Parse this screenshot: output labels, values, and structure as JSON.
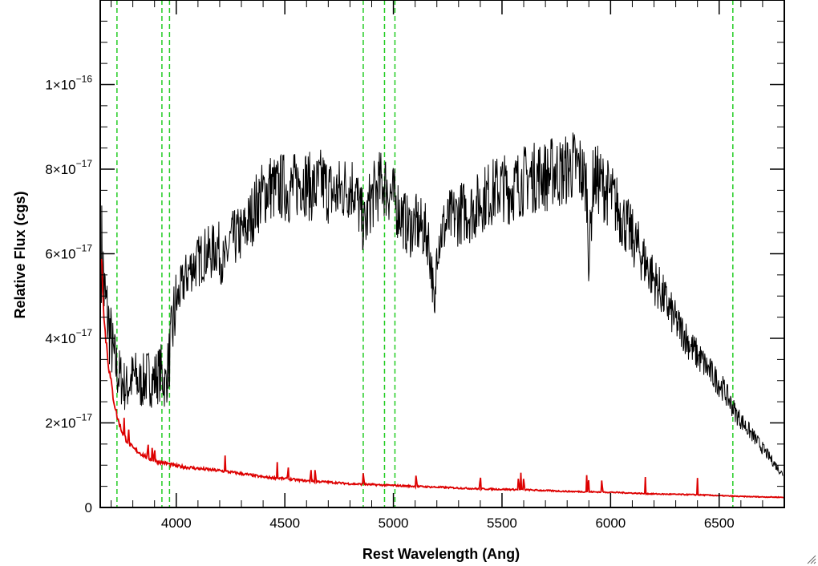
{
  "chart_data": {
    "type": "line",
    "xlabel": "Rest Wavelength (Ang)",
    "ylabel": "Relative Flux (cgs)",
    "xlim": [
      3650,
      6800
    ],
    "ylim": [
      0,
      1.2e-16
    ],
    "x_ticks": [
      {
        "value": 4000,
        "label": "4000"
      },
      {
        "value": 4500,
        "label": "4500"
      },
      {
        "value": 5000,
        "label": "5000"
      },
      {
        "value": 5500,
        "label": "5500"
      },
      {
        "value": 6000,
        "label": "6000"
      },
      {
        "value": 6500,
        "label": "6500"
      }
    ],
    "y_ticks": [
      {
        "value": 0,
        "mantissa": "0",
        "exponent": ""
      },
      {
        "value": 2e-17,
        "mantissa": "2×10",
        "exponent": "−17"
      },
      {
        "value": 4e-17,
        "mantissa": "4×10",
        "exponent": "−17"
      },
      {
        "value": 6e-17,
        "mantissa": "6×10",
        "exponent": "−17"
      },
      {
        "value": 8e-17,
        "mantissa": "8×10",
        "exponent": "−17"
      },
      {
        "value": 1e-16,
        "mantissa": "1×10",
        "exponent": "−16"
      }
    ],
    "vertical_lines": [
      3727,
      3934,
      3969,
      4861,
      4959,
      5007,
      6563
    ],
    "series": [
      {
        "color": "#000000",
        "x": [
          3655,
          3670,
          3690,
          3710,
          3730,
          3750,
          3770,
          3790,
          3810,
          3830,
          3850,
          3870,
          3890,
          3910,
          3930,
          3950,
          3970,
          3990,
          4010,
          4040,
          4070,
          4100,
          4130,
          4160,
          4190,
          4220,
          4250,
          4280,
          4310,
          4340,
          4370,
          4400,
          4430,
          4460,
          4490,
          4520,
          4550,
          4580,
          4610,
          4640,
          4670,
          4700,
          4730,
          4760,
          4790,
          4820,
          4850,
          4870,
          4890,
          4920,
          4950,
          4980,
          5010,
          5040,
          5070,
          5100,
          5130,
          5160,
          5180,
          5190,
          5200,
          5230,
          5260,
          5290,
          5320,
          5350,
          5380,
          5410,
          5440,
          5470,
          5500,
          5530,
          5560,
          5590,
          5620,
          5650,
          5680,
          5710,
          5740,
          5770,
          5800,
          5830,
          5860,
          5890,
          5900,
          5920,
          5950,
          5980,
          6010,
          6040,
          6070,
          6100,
          6130,
          6160,
          6190,
          6220,
          6250,
          6280,
          6310,
          6340,
          6370,
          6400,
          6430,
          6460,
          6490,
          6520,
          6550,
          6580,
          6610,
          6640,
          6670,
          6700,
          6730,
          6760,
          6790
        ],
        "y": [
          6.2e-17,
          5e-17,
          4.3e-17,
          3.6e-17,
          3.2e-17,
          3e-17,
          2.8e-17,
          3e-17,
          3.1e-17,
          2.9e-17,
          3e-17,
          3.1e-17,
          3e-17,
          3.1e-17,
          3.2e-17,
          2.9e-17,
          3.6e-17,
          4.5e-17,
          5e-17,
          5.4e-17,
          5.7e-17,
          5.8e-17,
          6e-17,
          6e-17,
          6.2e-17,
          5.7e-17,
          6.3e-17,
          6.4e-17,
          6.5e-17,
          6.8e-17,
          7.2e-17,
          7.4e-17,
          7.6e-17,
          7.5e-17,
          7.6e-17,
          7.5e-17,
          7.6e-17,
          7.8e-17,
          7.6e-17,
          7.5e-17,
          7.7e-17,
          7.5e-17,
          7.4e-17,
          7.5e-17,
          7.6e-17,
          7.6e-17,
          6.9e-17,
          6.6e-17,
          7.2e-17,
          7.5e-17,
          7.7e-17,
          7.5e-17,
          7.2e-17,
          6.9e-17,
          6.6e-17,
          6.7e-17,
          6.6e-17,
          6.4e-17,
          5.4e-17,
          4.3e-17,
          6.3e-17,
          6.6e-17,
          6.8e-17,
          6.9e-17,
          7e-17,
          7e-17,
          7.1e-17,
          7.3e-17,
          7.4e-17,
          7.5e-17,
          7.6e-17,
          7.5e-17,
          7.6e-17,
          7.7e-17,
          7.8e-17,
          7.8e-17,
          7.9e-17,
          7.8e-17,
          8e-17,
          7.9e-17,
          8e-17,
          8.1e-17,
          8e-17,
          7.6e-17,
          5.8e-17,
          7.8e-17,
          7.7e-17,
          7.5e-17,
          7.3e-17,
          7e-17,
          6.7e-17,
          6.4e-17,
          6.1e-17,
          5.8e-17,
          5.5e-17,
          5.2e-17,
          4.9e-17,
          4.6e-17,
          4.3e-17,
          4.1e-17,
          3.8e-17,
          3.6e-17,
          3.4e-17,
          3.2e-17,
          3e-17,
          2.8e-17,
          2.5e-17,
          2.2e-17,
          2e-17,
          1.8e-17,
          1.6e-17,
          1.4e-17,
          1.2e-17,
          1e-17,
          8e-18
        ]
      },
      {
        "color": "#dd0000",
        "x": [
          3655,
          3670,
          3690,
          3710,
          3730,
          3750,
          3770,
          3800,
          3830,
          3860,
          3900,
          3950,
          4000,
          4100,
          4200,
          4300,
          4400,
          4500,
          4600,
          4700,
          4800,
          4900,
          5000,
          5100,
          5200,
          5300,
          5400,
          5500,
          5600,
          5700,
          5800,
          5900,
          6000,
          6100,
          6200,
          6300,
          6400,
          6500,
          6600,
          6700,
          6800
        ],
        "y": [
          6e-17,
          4.3e-17,
          3.3e-17,
          2.6e-17,
          2.1e-17,
          1.8e-17,
          1.6e-17,
          1.4e-17,
          1.3e-17,
          1.2e-17,
          1.1e-17,
          1.05e-17,
          9.8e-18,
          9.2e-18,
          8.7e-18,
          8e-18,
          7.2e-18,
          6.8e-18,
          6.3e-18,
          6e-18,
          5.6e-18,
          5.4e-18,
          5.2e-18,
          5e-18,
          4.8e-18,
          4.6e-18,
          4.4e-18,
          4.3e-18,
          4.2e-18,
          4e-18,
          3.8e-18,
          3.7e-18,
          3.6e-18,
          3.4e-18,
          3.2e-18,
          3.1e-18,
          3e-18,
          2.8e-18,
          2.6e-18,
          2.5e-18,
          2.4e-18
        ]
      }
    ],
    "emission_lines": [
      3760,
      3780,
      3870,
      3890,
      3900,
      4225,
      4465,
      4515,
      4620,
      4640,
      4862,
      5105,
      5400,
      5576,
      5587,
      5600,
      5890,
      5898,
      5960,
      6160,
      6400
    ],
    "colors": {
      "vertical_lines": "#22cc22",
      "axes": "#000000"
    }
  }
}
